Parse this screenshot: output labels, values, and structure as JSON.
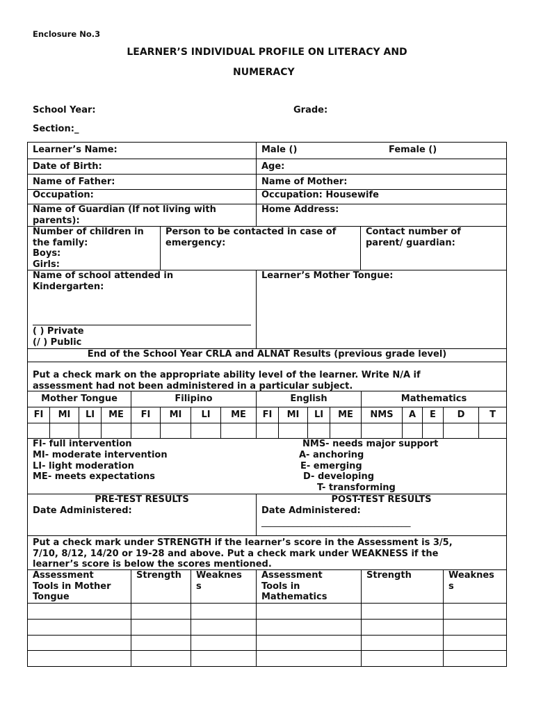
{
  "header": {
    "enclosure": "Enclosure No.3",
    "title_line1": "LEARNER’S INDIVIDUAL PROFILE ON LITERACY AND",
    "title_line2": "NUMERACY"
  },
  "top_fields": {
    "school_year": "School Year:",
    "grade": "Grade:",
    "section": "Section:",
    "section_suffix": "_"
  },
  "profile": {
    "learner_name": "Learner’s Name:",
    "male": "Male ()",
    "female": "Female ()",
    "dob": "Date of Birth:",
    "age": "Age:",
    "father": "Name of Father:",
    "mother": "Name of Mother:",
    "occupation_father": "Occupation:",
    "occupation_mother": "Occupation: Housewife",
    "guardian": "Name of Guardian (If not living with\nparents):",
    "home_address": "Home Address:",
    "children": "Number of children in\nthe family:\nBoys:\nGirls:",
    "contact_person": "Person to be contacted in case of\nemergency:",
    "contact_number": "Contact number of\nparent/ guardian:",
    "kindergarten": "Name of school attended in\nKindergarten:",
    "private": "( ) Private",
    "public": "(/ ) Public",
    "mother_tongue": "Learner’s Mother Tongue:"
  },
  "results": {
    "heading": "End of the School Year CRLA and ALNAT Results (previous grade level)",
    "instruction": "Put a check mark on the appropriate ability level of the learner. Write N/A if\nassessment had not been administered in a particular subject.",
    "subjects": [
      "Mother Tongue",
      "Filipino",
      "English",
      "Mathematics"
    ],
    "levels": [
      "FI",
      "MI",
      "LI",
      "ME",
      "FI",
      "MI",
      "LI",
      "ME",
      "FI",
      "MI",
      "LI",
      "ME",
      "NMS",
      "A",
      "E",
      "D",
      "T"
    ],
    "legend_left": [
      "FI- full intervention",
      "MI- moderate intervention",
      "LI- light moderation",
      "ME- meets expectations"
    ],
    "legend_right": [
      "NMS- needs major support",
      "A- anchoring",
      "E- emerging",
      "D- developing",
      "T- transforming"
    ]
  },
  "tests": {
    "pre": "PRE-TEST RESULTS",
    "post": "POST-TEST RESULTS",
    "date": "Date Administered:",
    "post_blank": "_________________________________"
  },
  "strength": {
    "instruction": "Put a check mark under STRENGTH if the learner’s score in the Assessment is 3/5,\n7/10, 8/12, 14/20 or 19-28 and above. Put a check mark under WEAKNESS if the\nlearner’s score is below the scores mentioned.",
    "headers": [
      "Assessment\nTools in Mother\nTongue",
      "Strength",
      "Weaknes\ns",
      "Assessment\nTools in\nMathematics",
      "Strength",
      "Weaknes\ns"
    ]
  }
}
